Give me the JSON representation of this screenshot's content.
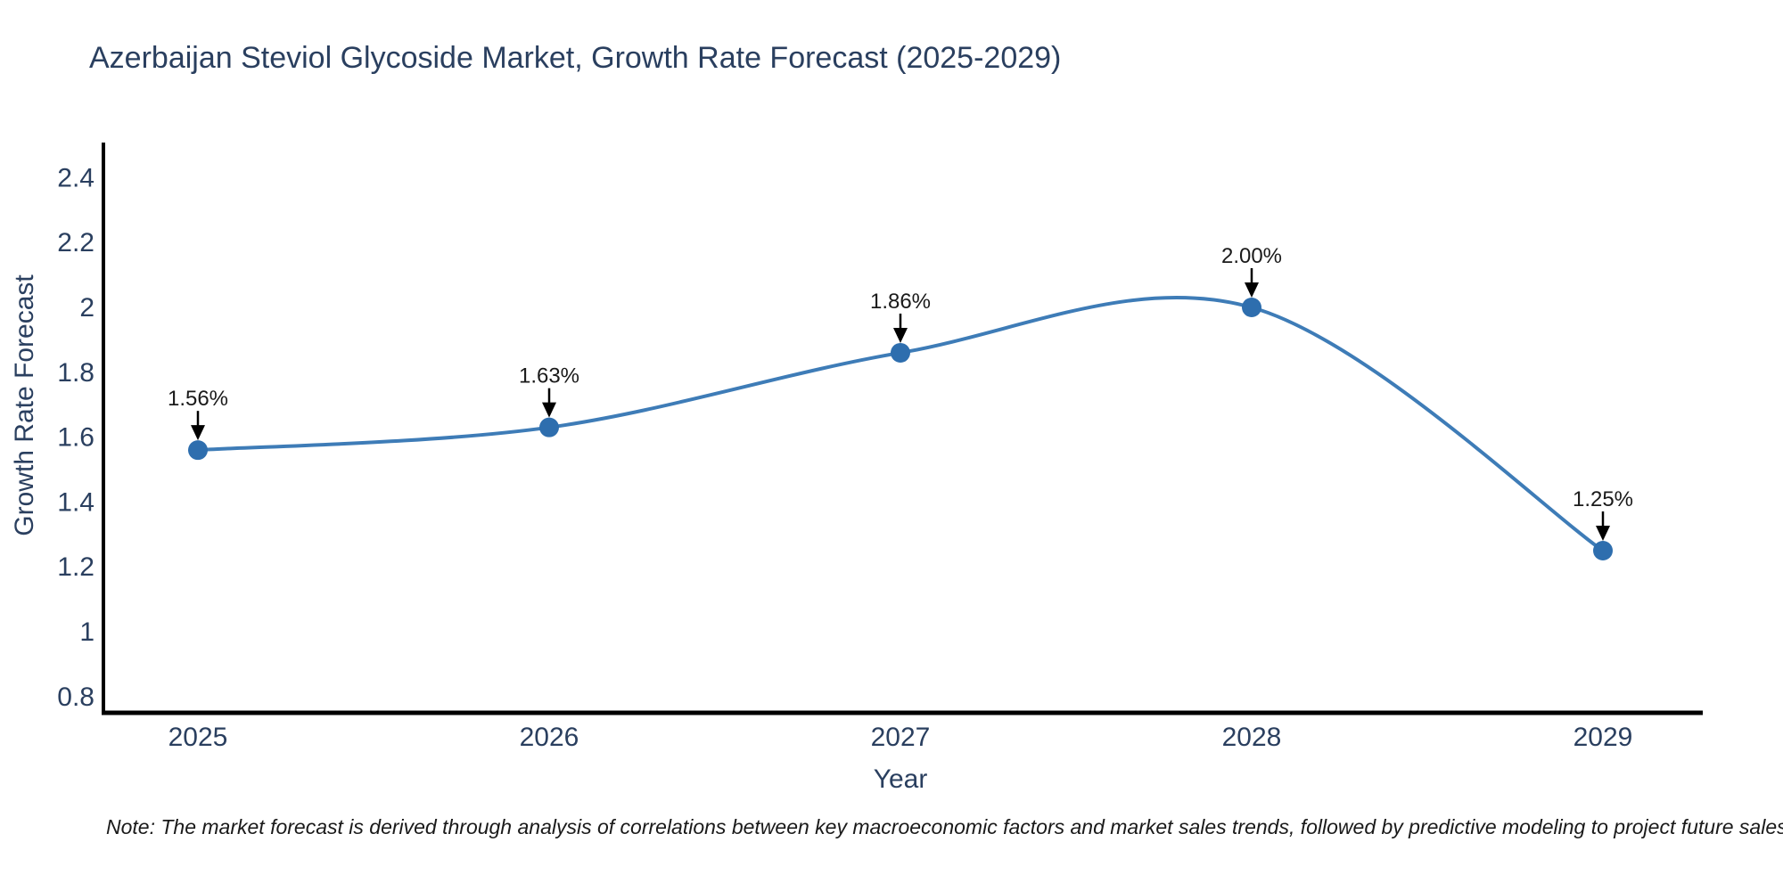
{
  "title": "Azerbaijan Steviol Glycoside Market, Growth Rate Forecast (2025-2029)",
  "note": "Note: The market forecast is derived through analysis of correlations between key macroeconomic factors and market sales trends, followed by predictive modeling to project future sales",
  "chart_data": {
    "type": "line",
    "title": "Azerbaijan Steviol Glycoside Market, Growth Rate Forecast (2025-2029)",
    "xlabel": "Year",
    "ylabel": "Growth Rate Forecast",
    "x": [
      2025,
      2026,
      2027,
      2028,
      2029
    ],
    "series": [
      {
        "name": "Growth Rate Forecast",
        "values": [
          1.56,
          1.63,
          1.86,
          2.0,
          1.25
        ],
        "point_labels": [
          "1.56%",
          "1.63%",
          "1.86%",
          "2.00%",
          "1.25%"
        ]
      }
    ],
    "xtick_labels": [
      "2025",
      "2026",
      "2027",
      "2028",
      "2029"
    ],
    "ytick_values": [
      0.8,
      1.0,
      1.2,
      1.4,
      1.6,
      1.8,
      2.0,
      2.2,
      2.4
    ],
    "ytick_labels": [
      "0.8",
      "1",
      "1.2",
      "1.4",
      "1.6",
      "1.8",
      "2",
      "2.2",
      "2.4"
    ],
    "ylim": [
      0.75,
      2.51
    ],
    "line_shape": "spline",
    "grid": false,
    "legend": "none",
    "colors": {
      "line": "#3e7cb7",
      "marker": "#2e6eae",
      "axis_line": "#000000",
      "tick_text": "#2a3f5f",
      "annotation_text": "#1a1a1a",
      "annotation_arrow": "#000000",
      "background": "#ffffff"
    }
  }
}
